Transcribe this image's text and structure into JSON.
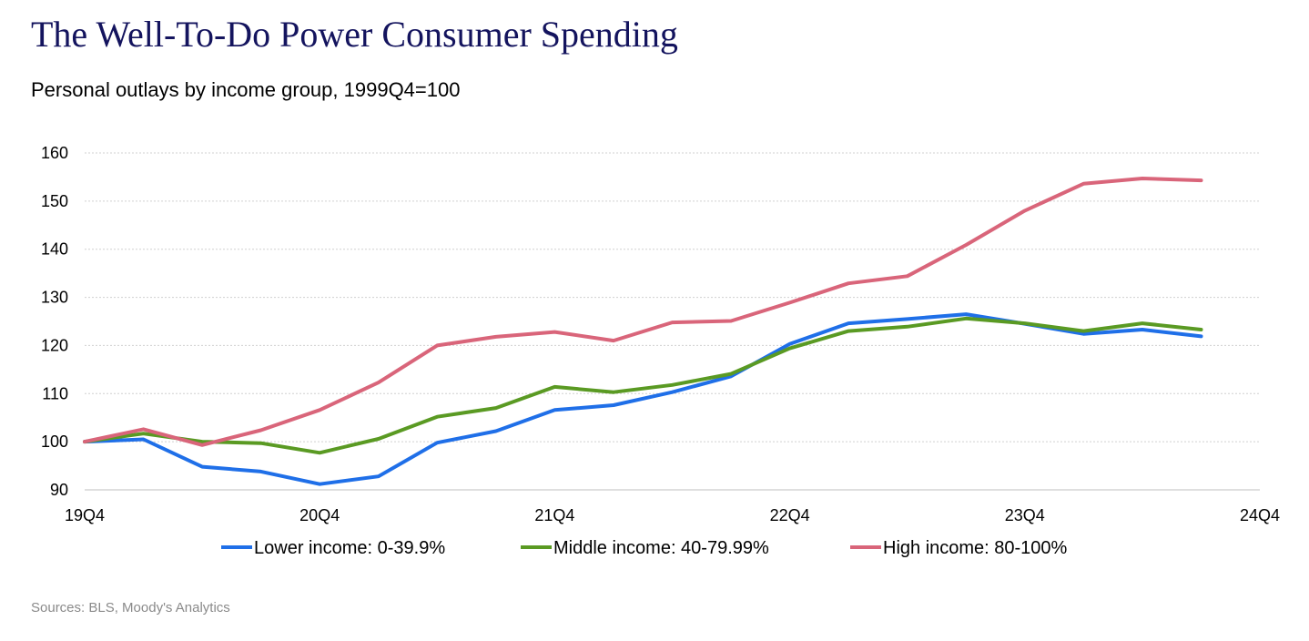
{
  "title": "The Well-To-Do Power Consumer Spending",
  "subtitle": "Personal outlays by income group, 1999Q4=100",
  "source": "Sources: BLS, Moody's Analytics",
  "chart_data": {
    "type": "line",
    "title": "The Well-To-Do Power Consumer Spending",
    "subtitle": "Personal outlays by income group, 1999Q4=100",
    "xlabel": "",
    "ylabel": "",
    "ylim": [
      90,
      160
    ],
    "yticks": [
      90,
      100,
      110,
      120,
      130,
      140,
      150,
      160
    ],
    "xticks": [
      {
        "label": "19Q4",
        "value": 0
      },
      {
        "label": "20Q4",
        "value": 4
      },
      {
        "label": "21Q4",
        "value": 8
      },
      {
        "label": "22Q4",
        "value": 12
      },
      {
        "label": "23Q4",
        "value": 16
      },
      {
        "label": "24Q4",
        "value": 20
      }
    ],
    "xlim": [
      0,
      20
    ],
    "x": [
      0,
      1,
      2,
      3,
      4,
      5,
      6,
      7,
      8,
      9,
      10,
      11,
      12,
      13,
      14,
      15,
      16,
      17,
      18,
      19
    ],
    "grid": true,
    "legend_position": "bottom",
    "series": [
      {
        "name": "Lower income: 0-39.9%",
        "color": "#1f6fe8",
        "values": [
          100,
          100.5,
          94.8,
          93.8,
          91.2,
          92.8,
          99.8,
          102.2,
          106.6,
          107.6,
          110.3,
          113.6,
          120.3,
          124.6,
          125.5,
          126.5,
          124.5,
          122.4,
          123.3,
          121.9
        ]
      },
      {
        "name": "Middle income: 40-79.99%",
        "color": "#5a9a23",
        "values": [
          100,
          101.7,
          100.0,
          99.7,
          97.7,
          100.6,
          105.2,
          107.0,
          111.4,
          110.3,
          111.8,
          114.1,
          119.4,
          123.0,
          123.9,
          125.6,
          124.6,
          123.0,
          124.6,
          123.3
        ]
      },
      {
        "name": "High income: 80-100%",
        "color": "#d9657a",
        "values": [
          100,
          102.6,
          99.3,
          102.4,
          106.6,
          112.3,
          120.0,
          121.8,
          122.8,
          121.0,
          124.8,
          125.1,
          128.9,
          132.9,
          134.4,
          140.9,
          148.0,
          153.6,
          154.7,
          154.3
        ]
      }
    ]
  }
}
